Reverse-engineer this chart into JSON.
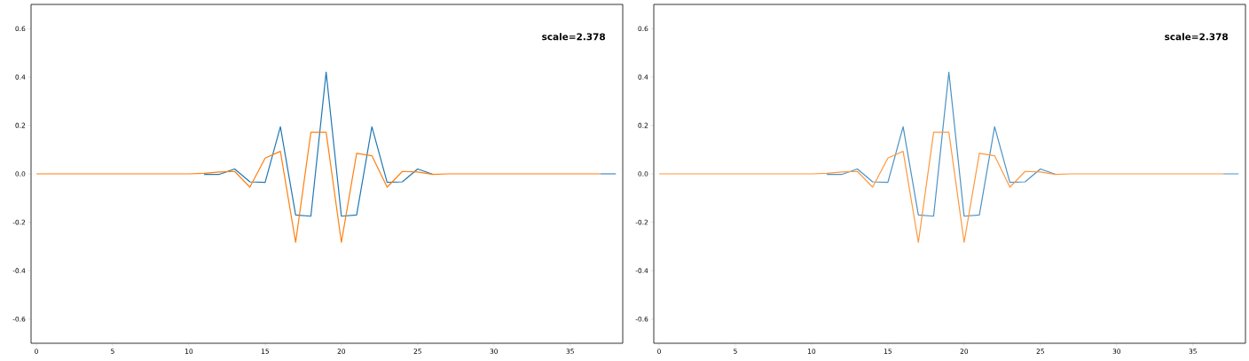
{
  "chart_data": [
    {
      "type": "line",
      "xlim": [
        -0.35,
        38.45
      ],
      "ylim": [
        -0.7,
        0.7
      ],
      "xticks": [
        0,
        5,
        10,
        15,
        20,
        25,
        30,
        35
      ],
      "yticks": [
        -0.6,
        -0.4,
        -0.2,
        {
          "value": 0,
          "label": "0.0"
        },
        0.2,
        0.4,
        0.6
      ],
      "annotations": [
        "scale=2.378"
      ],
      "series": [
        {
          "color": "#1f77b4",
          "x": [
            11,
            12,
            13,
            14,
            15,
            16,
            17,
            18,
            19,
            20,
            21,
            22,
            23,
            24,
            25,
            26,
            27,
            28,
            29,
            30,
            31,
            32,
            33,
            34,
            35,
            36,
            37,
            38
          ],
          "values": [
            -0.002,
            -0.002,
            0.02,
            -0.033,
            -0.035,
            0.195,
            -0.17,
            -0.175,
            0.42,
            -0.175,
            -0.17,
            0.195,
            -0.035,
            -0.033,
            0.02,
            -0.002,
            null,
            null,
            null,
            null,
            null,
            null,
            null,
            null,
            null,
            null,
            0,
            0
          ]
        },
        {
          "color": "#ff7f0e",
          "x": [
            0,
            1,
            2,
            3,
            4,
            5,
            6,
            7,
            8,
            9,
            10,
            11,
            12,
            13,
            14,
            15,
            16,
            17,
            18,
            19,
            20,
            21,
            22,
            23,
            24,
            25,
            26,
            27,
            28,
            29,
            30,
            31,
            32,
            33,
            34,
            35,
            36,
            37
          ],
          "values": [
            0,
            0,
            0,
            0,
            0,
            0,
            0,
            0,
            0,
            0,
            0,
            0.002,
            0.008,
            0.01,
            -0.055,
            0.065,
            0.093,
            -0.283,
            0.172,
            0.172,
            -0.283,
            0.085,
            0.075,
            -0.055,
            0.01,
            0.008,
            -0.002,
            0,
            0,
            0,
            0,
            0,
            0,
            0,
            0,
            0,
            0,
            0
          ]
        }
      ]
    },
    {
      "type": "line",
      "xlim": [
        -0.35,
        38.45
      ],
      "ylim": [
        -0.7,
        0.7
      ],
      "xticks": [
        0,
        5,
        10,
        15,
        20,
        25,
        30,
        35
      ],
      "yticks": [
        -0.6,
        -0.4,
        -0.2,
        {
          "value": 0,
          "label": "0.0"
        },
        0.2,
        0.4,
        0.6
      ],
      "annotations": [
        "scale=2.378"
      ],
      "series": [
        {
          "color": "#4c92c3",
          "x": [
            11,
            12,
            13,
            14,
            15,
            16,
            17,
            18,
            19,
            20,
            21,
            22,
            23,
            24,
            25,
            26,
            27,
            28,
            29,
            30,
            31,
            32,
            33,
            34,
            35,
            36,
            37,
            38
          ],
          "values": [
            -0.002,
            -0.002,
            0.02,
            -0.033,
            -0.035,
            0.195,
            -0.17,
            -0.175,
            0.42,
            -0.175,
            -0.17,
            0.195,
            -0.035,
            -0.033,
            0.02,
            -0.002,
            null,
            null,
            null,
            null,
            null,
            null,
            null,
            null,
            null,
            null,
            0,
            0
          ]
        },
        {
          "color": "#ff983e",
          "x": [
            0,
            1,
            2,
            3,
            4,
            5,
            6,
            7,
            8,
            9,
            10,
            11,
            12,
            13,
            14,
            15,
            16,
            17,
            18,
            19,
            20,
            21,
            22,
            23,
            24,
            25,
            26,
            27,
            28,
            29,
            30,
            31,
            32,
            33,
            34,
            35,
            36,
            37
          ],
          "values": [
            0,
            0,
            0,
            0,
            0,
            0,
            0,
            0,
            0,
            0,
            0,
            0.002,
            0.008,
            0.01,
            -0.055,
            0.065,
            0.093,
            -0.283,
            0.172,
            0.172,
            -0.283,
            0.085,
            0.075,
            -0.055,
            0.01,
            0.008,
            -0.002,
            0,
            0,
            0,
            0,
            0,
            0,
            0,
            0,
            0,
            0,
            0
          ]
        }
      ]
    }
  ]
}
